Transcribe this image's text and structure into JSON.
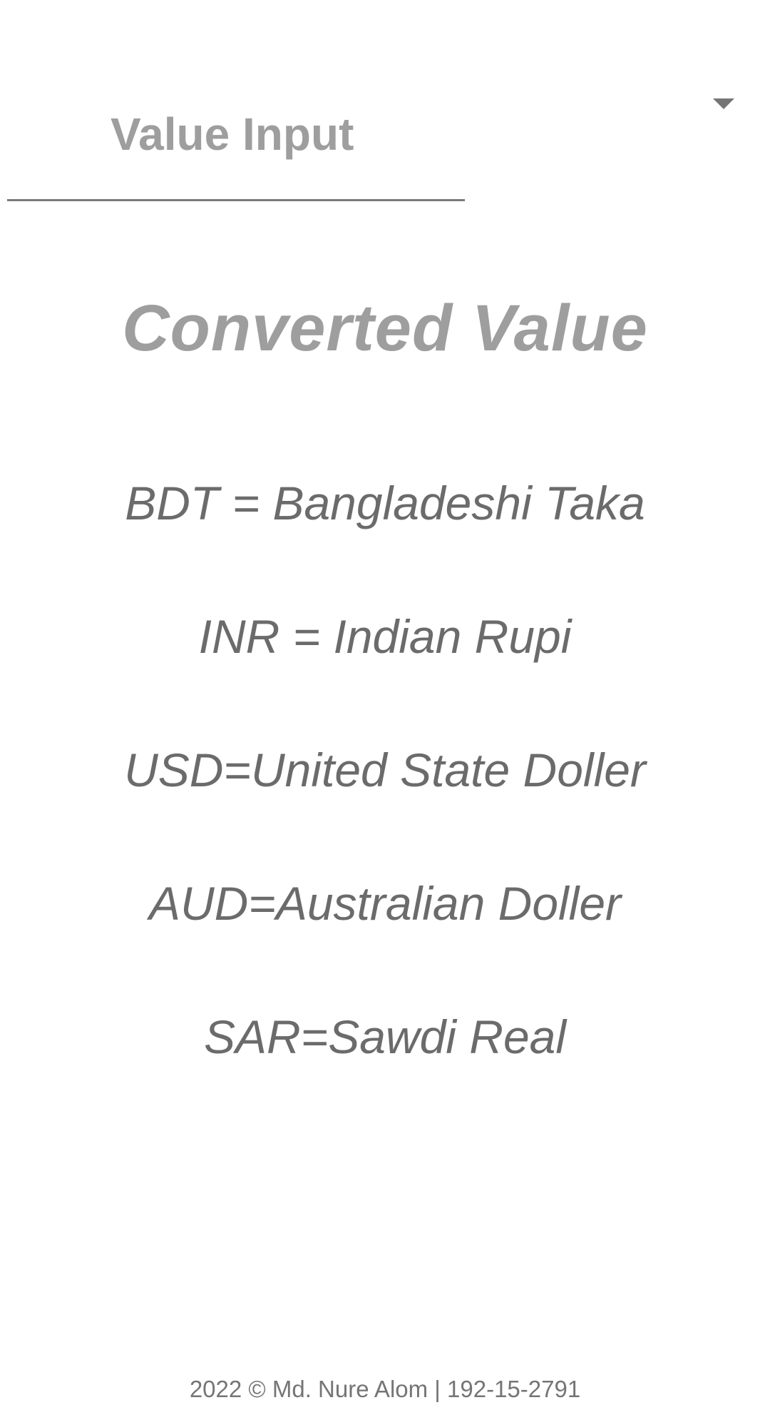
{
  "input": {
    "placeholder": "Value Input",
    "value": ""
  },
  "dropdown": {
    "icon": "caret-down-icon",
    "selected": ""
  },
  "result": {
    "heading": "Converted Value"
  },
  "legend": {
    "items": [
      "BDT = Bangladeshi Taka",
      "INR = Indian Rupi",
      "USD=United State Doller",
      "AUD=Australian Doller",
      "SAR=Sawdi Real"
    ]
  },
  "footer": {
    "text": "2022 © Md. Nure Alom | 192-15-2791"
  },
  "colors": {
    "background": "#ffffff",
    "muted_text": "#9e9e9e",
    "body_text": "#6b6b6b",
    "underline": "#7a7a7a"
  }
}
